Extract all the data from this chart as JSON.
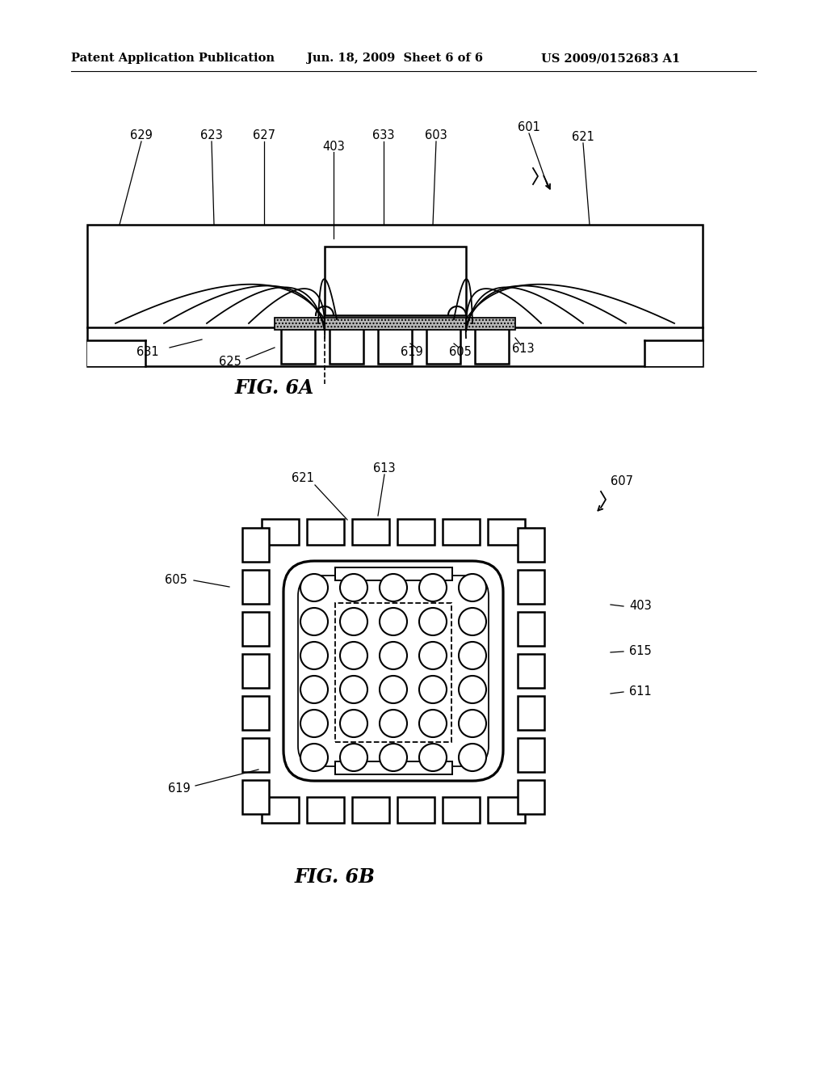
{
  "header_left": "Patent Application Publication",
  "header_mid": "Jun. 18, 2009  Sheet 6 of 6",
  "header_right": "US 2009/0152683 A1",
  "fig6a_label": "FIG. 6A",
  "fig6b_label": "FIG. 6B",
  "bg_color": "#ffffff",
  "line_color": "#000000"
}
